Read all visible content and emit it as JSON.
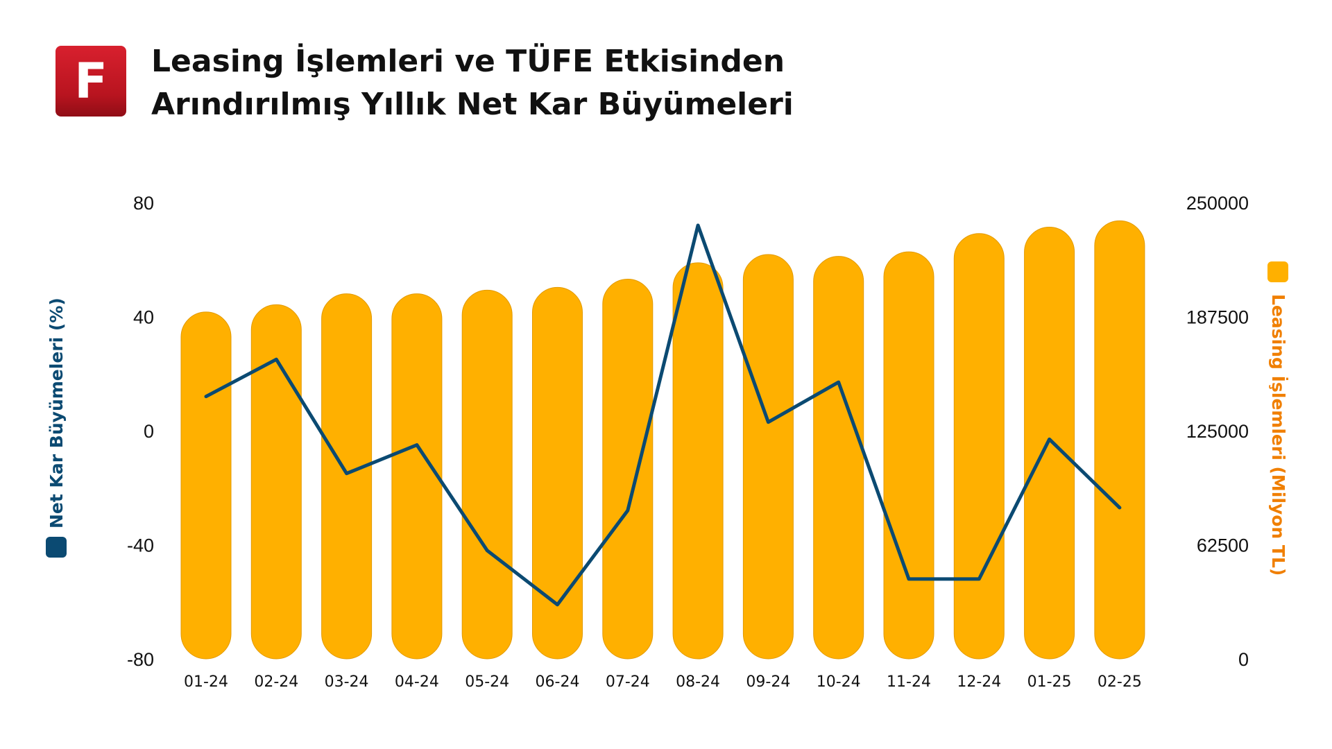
{
  "header": {
    "logo_letter": "F",
    "title_line1": "Leasing İşlemleri ve TÜFE Etkisinden",
    "title_line2": "Arındırılmış Yıllık Net Kar Büyümeleri"
  },
  "chart_data": {
    "type": "bar",
    "categories": [
      "01-24",
      "02-24",
      "03-24",
      "04-24",
      "05-24",
      "06-24",
      "07-24",
      "08-24",
      "09-24",
      "10-24",
      "11-24",
      "12-24",
      "01-25",
      "02-25"
    ],
    "series": [
      {
        "name": "Leasing İşlemleri (Milyon TL)",
        "type": "bar",
        "axis": "right",
        "color": "#FFB000",
        "values": [
          190000,
          194000,
          200000,
          200000,
          202000,
          203500,
          208000,
          217000,
          221500,
          220500,
          223000,
          233000,
          236500,
          240000
        ]
      },
      {
        "name": "Net Kar Büyümeleri (%)",
        "type": "line",
        "axis": "left",
        "color": "#0B4A72",
        "values": [
          12,
          25,
          -15,
          -5,
          -42,
          -61,
          -28,
          72,
          3,
          17,
          -52,
          -52,
          -3,
          -27
        ]
      }
    ],
    "left_axis": {
      "label": "Net Kar Büyümeleri (%)",
      "ylim": [
        -80,
        80
      ],
      "ticks": [
        "80",
        "40",
        "0",
        "-40",
        "-80"
      ]
    },
    "right_axis": {
      "label": "Leasing İşlemleri (Milyon TL)",
      "ylim": [
        0,
        250000
      ],
      "ticks": [
        "250000",
        "187500",
        "125000",
        "62500",
        "0"
      ]
    },
    "grid": false
  }
}
